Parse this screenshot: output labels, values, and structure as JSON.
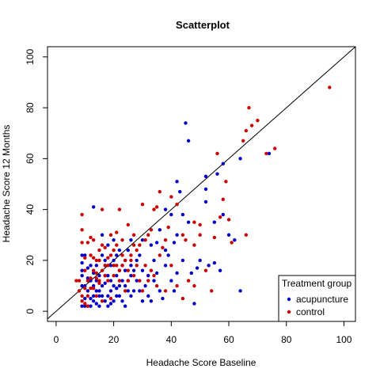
{
  "chart_data": {
    "type": "scatter",
    "title": "Scatterplot",
    "xlabel": "Headache Score Baseline",
    "ylabel": "Headache Score 12 Months",
    "xlim": [
      -3,
      104
    ],
    "ylim": [
      -4,
      104
    ],
    "xticks": [
      0,
      20,
      40,
      60,
      80,
      100
    ],
    "yticks": [
      0,
      20,
      40,
      60,
      80,
      100
    ],
    "reference_line": "y = x",
    "grid": false,
    "legend": {
      "title": "Treatment group",
      "position": "bottom-right"
    },
    "series": [
      {
        "name": "acupuncture",
        "color": "#0000CC",
        "points": [
          [
            45,
            74
          ],
          [
            46,
            67
          ],
          [
            42,
            51
          ],
          [
            43,
            47
          ],
          [
            44,
            38
          ],
          [
            52,
            53
          ],
          [
            56,
            54
          ],
          [
            58,
            58
          ],
          [
            64,
            60
          ],
          [
            74,
            62
          ],
          [
            52,
            48
          ],
          [
            52,
            43
          ],
          [
            55,
            35
          ],
          [
            58,
            38
          ],
          [
            60,
            30
          ],
          [
            62,
            28
          ],
          [
            64,
            8
          ],
          [
            48,
            3
          ],
          [
            50,
            20
          ],
          [
            49,
            17
          ],
          [
            55,
            19
          ],
          [
            57,
            16
          ],
          [
            53,
            18
          ],
          [
            46,
            35
          ],
          [
            42,
            30
          ],
          [
            41,
            27
          ],
          [
            40,
            38
          ],
          [
            38,
            40
          ],
          [
            36,
            32
          ],
          [
            35,
            15
          ],
          [
            34,
            20
          ],
          [
            33,
            26
          ],
          [
            32,
            14
          ],
          [
            30,
            28
          ],
          [
            29,
            22
          ],
          [
            28,
            12
          ],
          [
            27,
            8
          ],
          [
            26,
            18
          ],
          [
            25,
            24
          ],
          [
            24,
            10
          ],
          [
            23,
            4
          ],
          [
            22,
            16
          ],
          [
            21,
            22
          ],
          [
            20,
            28
          ],
          [
            19,
            12
          ],
          [
            18,
            6
          ],
          [
            17,
            20
          ],
          [
            16,
            30
          ],
          [
            15,
            14
          ],
          [
            14,
            8
          ],
          [
            13,
            4
          ],
          [
            12,
            18
          ],
          [
            11,
            2
          ],
          [
            10,
            22
          ],
          [
            9,
            16
          ],
          [
            9,
            10
          ],
          [
            10,
            5
          ],
          [
            11,
            8
          ],
          [
            12,
            12
          ],
          [
            13,
            15
          ],
          [
            14,
            3
          ],
          [
            15,
            6
          ],
          [
            16,
            10
          ],
          [
            17,
            14
          ],
          [
            18,
            2
          ],
          [
            19,
            8
          ],
          [
            20,
            4
          ],
          [
            21,
            14
          ],
          [
            22,
            10
          ],
          [
            23,
            18
          ],
          [
            24,
            2
          ],
          [
            25,
            12
          ],
          [
            26,
            6
          ],
          [
            27,
            16
          ],
          [
            28,
            20
          ],
          [
            29,
            8
          ],
          [
            30,
            4
          ],
          [
            31,
            10
          ],
          [
            32,
            6
          ],
          [
            33,
            4
          ],
          [
            34,
            12
          ],
          [
            36,
            8
          ],
          [
            37,
            5
          ],
          [
            38,
            18
          ],
          [
            39,
            22
          ],
          [
            40,
            12
          ],
          [
            41,
            8
          ],
          [
            44,
            20
          ],
          [
            47,
            15
          ],
          [
            9,
            22
          ],
          [
            9,
            14
          ],
          [
            10,
            2
          ],
          [
            12,
            5
          ],
          [
            14,
            18
          ],
          [
            16,
            22
          ],
          [
            18,
            26
          ],
          [
            20,
            20
          ],
          [
            22,
            6
          ],
          [
            24,
            16
          ],
          [
            26,
            28
          ],
          [
            9,
            19
          ],
          [
            11,
            13
          ],
          [
            13,
            10
          ],
          [
            15,
            2
          ],
          [
            17,
            4
          ],
          [
            19,
            18
          ],
          [
            21,
            6
          ],
          [
            23,
            12
          ],
          [
            25,
            8
          ],
          [
            13,
            41
          ],
          [
            9,
            2
          ],
          [
            10,
            10
          ],
          [
            12,
            2
          ],
          [
            14,
            12
          ],
          [
            16,
            6
          ],
          [
            18,
            14
          ],
          [
            20,
            10
          ],
          [
            22,
            24
          ],
          [
            24,
            20
          ],
          [
            26,
            14
          ],
          [
            15,
            8
          ],
          [
            17,
            11
          ],
          [
            19,
            3
          ],
          [
            21,
            9
          ],
          [
            11,
            17
          ],
          [
            13,
            6
          ],
          [
            30,
            16
          ],
          [
            35,
            27
          ],
          [
            38,
            24
          ],
          [
            42,
            15
          ]
        ]
      },
      {
        "name": "control",
        "color": "#CC0000",
        "points": [
          [
            95,
            88
          ],
          [
            67,
            80
          ],
          [
            70,
            75
          ],
          [
            68,
            73
          ],
          [
            66,
            71
          ],
          [
            65,
            67
          ],
          [
            76,
            64
          ],
          [
            73,
            62
          ],
          [
            58,
            44
          ],
          [
            56,
            62
          ],
          [
            59,
            51
          ],
          [
            57,
            37
          ],
          [
            60,
            36
          ],
          [
            55,
            29
          ],
          [
            66,
            30
          ],
          [
            61,
            27
          ],
          [
            50,
            34
          ],
          [
            50,
            30
          ],
          [
            48,
            35
          ],
          [
            48,
            26
          ],
          [
            45,
            28
          ],
          [
            44,
            30
          ],
          [
            42,
            42
          ],
          [
            40,
            45
          ],
          [
            39,
            33
          ],
          [
            38,
            28
          ],
          [
            37,
            25
          ],
          [
            36,
            47
          ],
          [
            35,
            41
          ],
          [
            34,
            40
          ],
          [
            33,
            32
          ],
          [
            32,
            30
          ],
          [
            31,
            28
          ],
          [
            30,
            42
          ],
          [
            29,
            26
          ],
          [
            28,
            24
          ],
          [
            27,
            30
          ],
          [
            26,
            22
          ],
          [
            25,
            34
          ],
          [
            24,
            20
          ],
          [
            23,
            28
          ],
          [
            22,
            40
          ],
          [
            21,
            31
          ],
          [
            20,
            24
          ],
          [
            19,
            30
          ],
          [
            18,
            18
          ],
          [
            17,
            25
          ],
          [
            16,
            40
          ],
          [
            15,
            20
          ],
          [
            14,
            15
          ],
          [
            13,
            28
          ],
          [
            12,
            22
          ],
          [
            11,
            12
          ],
          [
            10,
            16
          ],
          [
            9,
            38
          ],
          [
            9,
            32
          ],
          [
            9,
            27
          ],
          [
            8,
            12
          ],
          [
            9,
            6
          ],
          [
            10,
            3
          ],
          [
            11,
            6
          ],
          [
            12,
            9
          ],
          [
            13,
            16
          ],
          [
            14,
            20
          ],
          [
            15,
            12
          ],
          [
            16,
            26
          ],
          [
            17,
            18
          ],
          [
            18,
            12
          ],
          [
            19,
            22
          ],
          [
            20,
            14
          ],
          [
            21,
            18
          ],
          [
            22,
            12
          ],
          [
            23,
            22
          ],
          [
            24,
            8
          ],
          [
            25,
            16
          ],
          [
            26,
            20
          ],
          [
            27,
            14
          ],
          [
            28,
            18
          ],
          [
            29,
            12
          ],
          [
            30,
            8
          ],
          [
            31,
            18
          ],
          [
            32,
            12
          ],
          [
            33,
            16
          ],
          [
            34,
            14
          ],
          [
            35,
            10
          ],
          [
            36,
            22
          ],
          [
            38,
            8
          ],
          [
            40,
            18
          ],
          [
            42,
            10
          ],
          [
            44,
            5
          ],
          [
            46,
            12
          ],
          [
            48,
            10
          ],
          [
            52,
            16
          ],
          [
            54,
            8
          ],
          [
            11,
            27
          ],
          [
            13,
            21
          ],
          [
            15,
            24
          ],
          [
            17,
            14
          ],
          [
            19,
            5
          ],
          [
            21,
            26
          ],
          [
            23,
            18
          ],
          [
            25,
            12
          ],
          [
            27,
            26
          ],
          [
            10,
            21
          ],
          [
            12,
            29
          ],
          [
            14,
            13
          ],
          [
            16,
            16
          ],
          [
            18,
            21
          ],
          [
            20,
            18
          ],
          [
            22,
            16
          ],
          [
            7,
            12
          ],
          [
            8,
            8
          ],
          [
            9,
            4
          ],
          [
            10,
            9
          ],
          [
            11,
            2
          ],
          [
            12,
            13
          ],
          [
            13,
            9
          ],
          [
            14,
            6
          ],
          [
            15,
            11
          ],
          [
            16,
            4
          ]
        ]
      }
    ]
  }
}
